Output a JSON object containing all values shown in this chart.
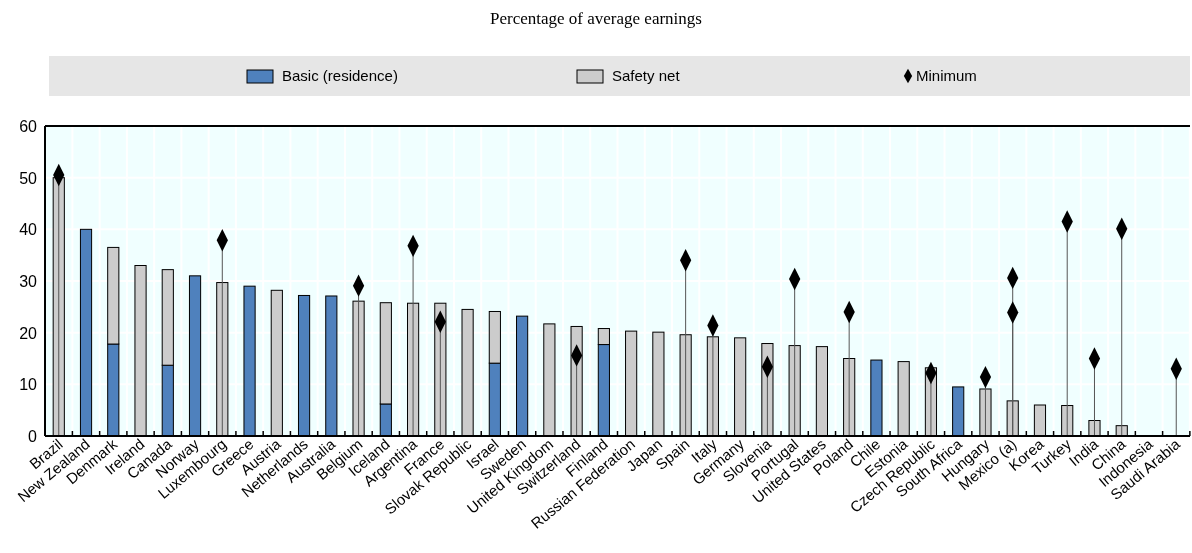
{
  "chart_data": {
    "type": "bar",
    "title": "Percentage of average earnings",
    "stacked": true,
    "legend": "top",
    "grid": true,
    "categories": [
      "Brazil",
      "New Zealand",
      "Denmark",
      "Ireland",
      "Canada",
      "Norway",
      "Luxembourg",
      "Greece",
      "Austria",
      "Netherlands",
      "Australia",
      "Belgium",
      "Iceland",
      "Argentina",
      "France",
      "Slovak Republic",
      "Israel",
      "Sweden",
      "United Kingdom",
      "Switzerland",
      "Finland",
      "Russian Federation",
      "Japan",
      "Spain",
      "Italy",
      "Germany",
      "Slovenia",
      "Portugal",
      "United States",
      "Poland",
      "Chile",
      "Estonia",
      "Czech Republic",
      "South Africa",
      "Hungary",
      "Mexico (a)",
      "Korea",
      "Turkey",
      "India",
      "China",
      "Indonesia",
      "Saudi Arabia"
    ],
    "ylim": [
      0,
      60
    ],
    "yticks": [
      0,
      10,
      20,
      30,
      40,
      50,
      60
    ],
    "series": [
      {
        "name": "Basic (residence)",
        "color": "#4f81bd",
        "values": [
          null,
          40,
          17.8,
          null,
          13.7,
          31,
          null,
          29,
          null,
          27.2,
          27.1,
          null,
          6.2,
          null,
          null,
          null,
          14.1,
          23.2,
          null,
          null,
          17.7,
          null,
          null,
          null,
          null,
          null,
          null,
          null,
          null,
          null,
          14.7,
          null,
          null,
          9.5,
          null,
          null,
          null,
          null,
          null,
          null,
          null,
          null
        ]
      },
      {
        "name": "Safety net",
        "color": "#cccccc",
        "values": [
          50,
          null,
          18.7,
          33,
          18.5,
          null,
          29.7,
          null,
          28.2,
          null,
          null,
          26.1,
          19.6,
          25.7,
          25.7,
          24.5,
          10,
          null,
          21.7,
          21.2,
          3.1,
          20.3,
          20.1,
          19.6,
          19.2,
          19,
          17.9,
          17.5,
          17.3,
          15,
          null,
          14.4,
          13.2,
          null,
          9.1,
          6.8,
          6,
          5.9,
          3,
          2,
          null,
          null
        ]
      },
      {
        "name": "Minimum",
        "type": "scatter",
        "marker": "diamond",
        "color": "#000000",
        "x": [
          "Brazil",
          "Luxembourg",
          "Belgium",
          "Argentina",
          "France",
          "Switzerland",
          "Spain",
          "Italy",
          "Slovenia",
          "Portugal",
          "Poland",
          "Czech Republic",
          "Hungary",
          "Mexico (a)",
          "Mexico (a)",
          "Turkey",
          "India",
          "China",
          "Saudi Arabia"
        ],
        "values": [
          50.5,
          37.9,
          29.1,
          36.8,
          22.1,
          15.6,
          34,
          21.4,
          13.4,
          30.4,
          24,
          12.2,
          11.4,
          30.6,
          23.9,
          41.5,
          15,
          40.1,
          13
        ]
      }
    ]
  }
}
